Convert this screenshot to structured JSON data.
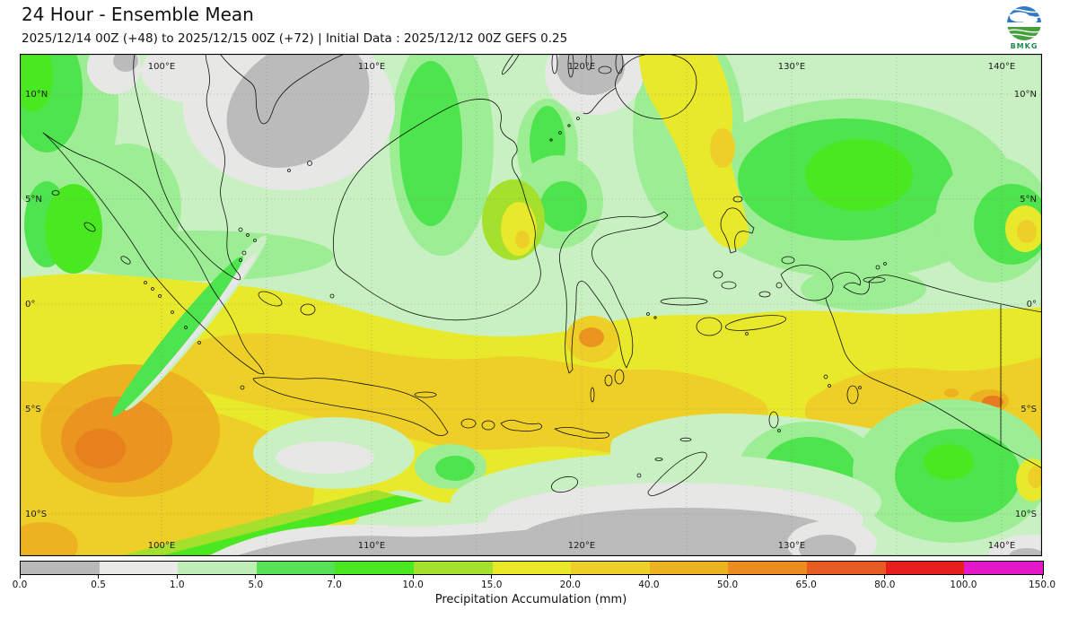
{
  "header": {
    "title": "24 Hour - Ensemble Mean",
    "subtitle": "2025/12/14 00Z (+48) to 2025/12/15 00Z (+72) | Initial Data : 2025/12/12 00Z GEFS 0.25",
    "logo_text": "BMKG"
  },
  "map": {
    "lon_labels": [
      "100°E",
      "110°E",
      "120°E",
      "130°E",
      "140°E"
    ],
    "lat_labels": [
      "10°N",
      "5°N",
      "0°",
      "5°S",
      "10°S"
    ]
  },
  "colorbar": {
    "title": "Precipitation Accumulation (mm)",
    "tick_labels": [
      "0.0",
      "0.5",
      "1.0",
      "5.0",
      "7.0",
      "10.0",
      "15.0",
      "20.0",
      "40.0",
      "50.0",
      "65.0",
      "80.0",
      "100.0",
      "150.0"
    ],
    "colors": [
      "#b9b9b9",
      "#e9e9e7",
      "#bfeeb7",
      "#57e157",
      "#4ae821",
      "#a5e02c",
      "#e8e829",
      "#eecf27",
      "#ecb21f",
      "#ec8c20",
      "#e65c20",
      "#e81e1e",
      "#e318c8"
    ]
  },
  "legend_semantics": {
    "units": "mm",
    "field": "precipitation accumulation (ensemble mean)"
  }
}
